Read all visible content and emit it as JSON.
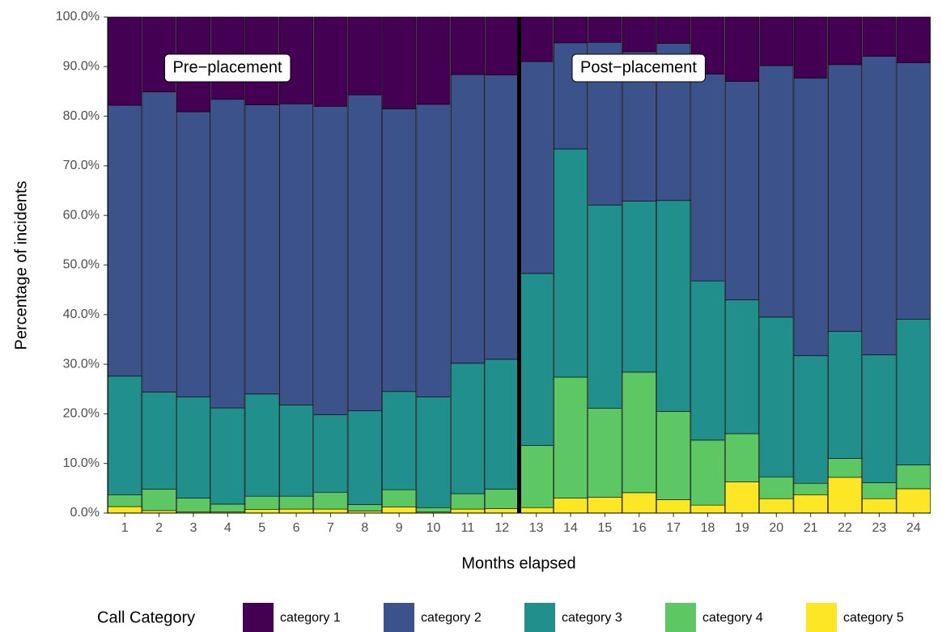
{
  "chart_data": {
    "type": "stacked_bar",
    "x_label": "Months elapsed",
    "y_label": "Percentage of incidents",
    "legend_title": "Call Category",
    "legend_position": "bottom",
    "annotations": [
      "Pre−placement",
      "Post−placement"
    ],
    "categories": [
      "1",
      "2",
      "3",
      "4",
      "5",
      "6",
      "7",
      "8",
      "9",
      "10",
      "11",
      "12",
      "13",
      "14",
      "15",
      "16",
      "17",
      "18",
      "19",
      "20",
      "21",
      "22",
      "23",
      "24"
    ],
    "series": [
      {
        "name": "category 1",
        "color": "#440154",
        "values": [
          17.8,
          15.1,
          19.1,
          16.6,
          17.7,
          17.5,
          18.0,
          15.7,
          18.5,
          17.6,
          11.6,
          11.7,
          9.0,
          5.2,
          5.1,
          7.0,
          5.3,
          11.5,
          13.0,
          9.8,
          12.3,
          9.6,
          7.9,
          9.2
        ]
      },
      {
        "name": "category 2",
        "color": "#3b528b",
        "values": [
          54.6,
          60.5,
          57.5,
          62.2,
          58.3,
          60.7,
          62.2,
          63.7,
          57.0,
          59.0,
          58.2,
          57.3,
          42.7,
          21.4,
          32.8,
          30.1,
          31.7,
          41.7,
          44.0,
          50.7,
          56.0,
          53.8,
          60.2,
          51.7
        ]
      },
      {
        "name": "category 3",
        "color": "#21908c",
        "values": [
          23.9,
          19.6,
          20.4,
          19.4,
          20.6,
          18.4,
          15.6,
          18.9,
          19.8,
          22.3,
          26.3,
          26.2,
          34.7,
          46.0,
          41.0,
          34.5,
          42.5,
          32.1,
          27.0,
          32.2,
          25.7,
          25.6,
          25.8,
          29.4
        ]
      },
      {
        "name": "category 4",
        "color": "#5dc863",
        "values": [
          2.4,
          4.3,
          2.8,
          1.6,
          2.7,
          2.6,
          3.4,
          1.3,
          3.5,
          0.9,
          3.1,
          3.9,
          12.5,
          24.4,
          17.9,
          24.3,
          17.8,
          13.1,
          9.7,
          4.4,
          2.3,
          3.8,
          3.2,
          4.8
        ]
      },
      {
        "name": "category 5",
        "color": "#fde725",
        "values": [
          1.3,
          0.5,
          0.2,
          0.2,
          0.7,
          0.8,
          0.8,
          0.4,
          1.2,
          0.2,
          0.8,
          0.9,
          1.1,
          3.0,
          3.2,
          4.1,
          2.7,
          1.6,
          6.3,
          2.9,
          3.7,
          7.2,
          2.9,
          4.9
        ]
      }
    ],
    "ylim": [
      0,
      100
    ],
    "yticks": [
      {
        "value": 0,
        "label": "0.0%"
      },
      {
        "value": 10,
        "label": "10.0%"
      },
      {
        "value": 20,
        "label": "20.0%"
      },
      {
        "value": 30,
        "label": "30.0%"
      },
      {
        "value": 40,
        "label": "40.0%"
      },
      {
        "value": 50,
        "label": "50.0%"
      },
      {
        "value": 60,
        "label": "60.0%"
      },
      {
        "value": 70,
        "label": "70.0%"
      },
      {
        "value": 80,
        "label": "80.0%"
      },
      {
        "value": 90,
        "label": "90.0%"
      },
      {
        "value": 100,
        "label": "100.0%"
      }
    ],
    "grid": false
  }
}
